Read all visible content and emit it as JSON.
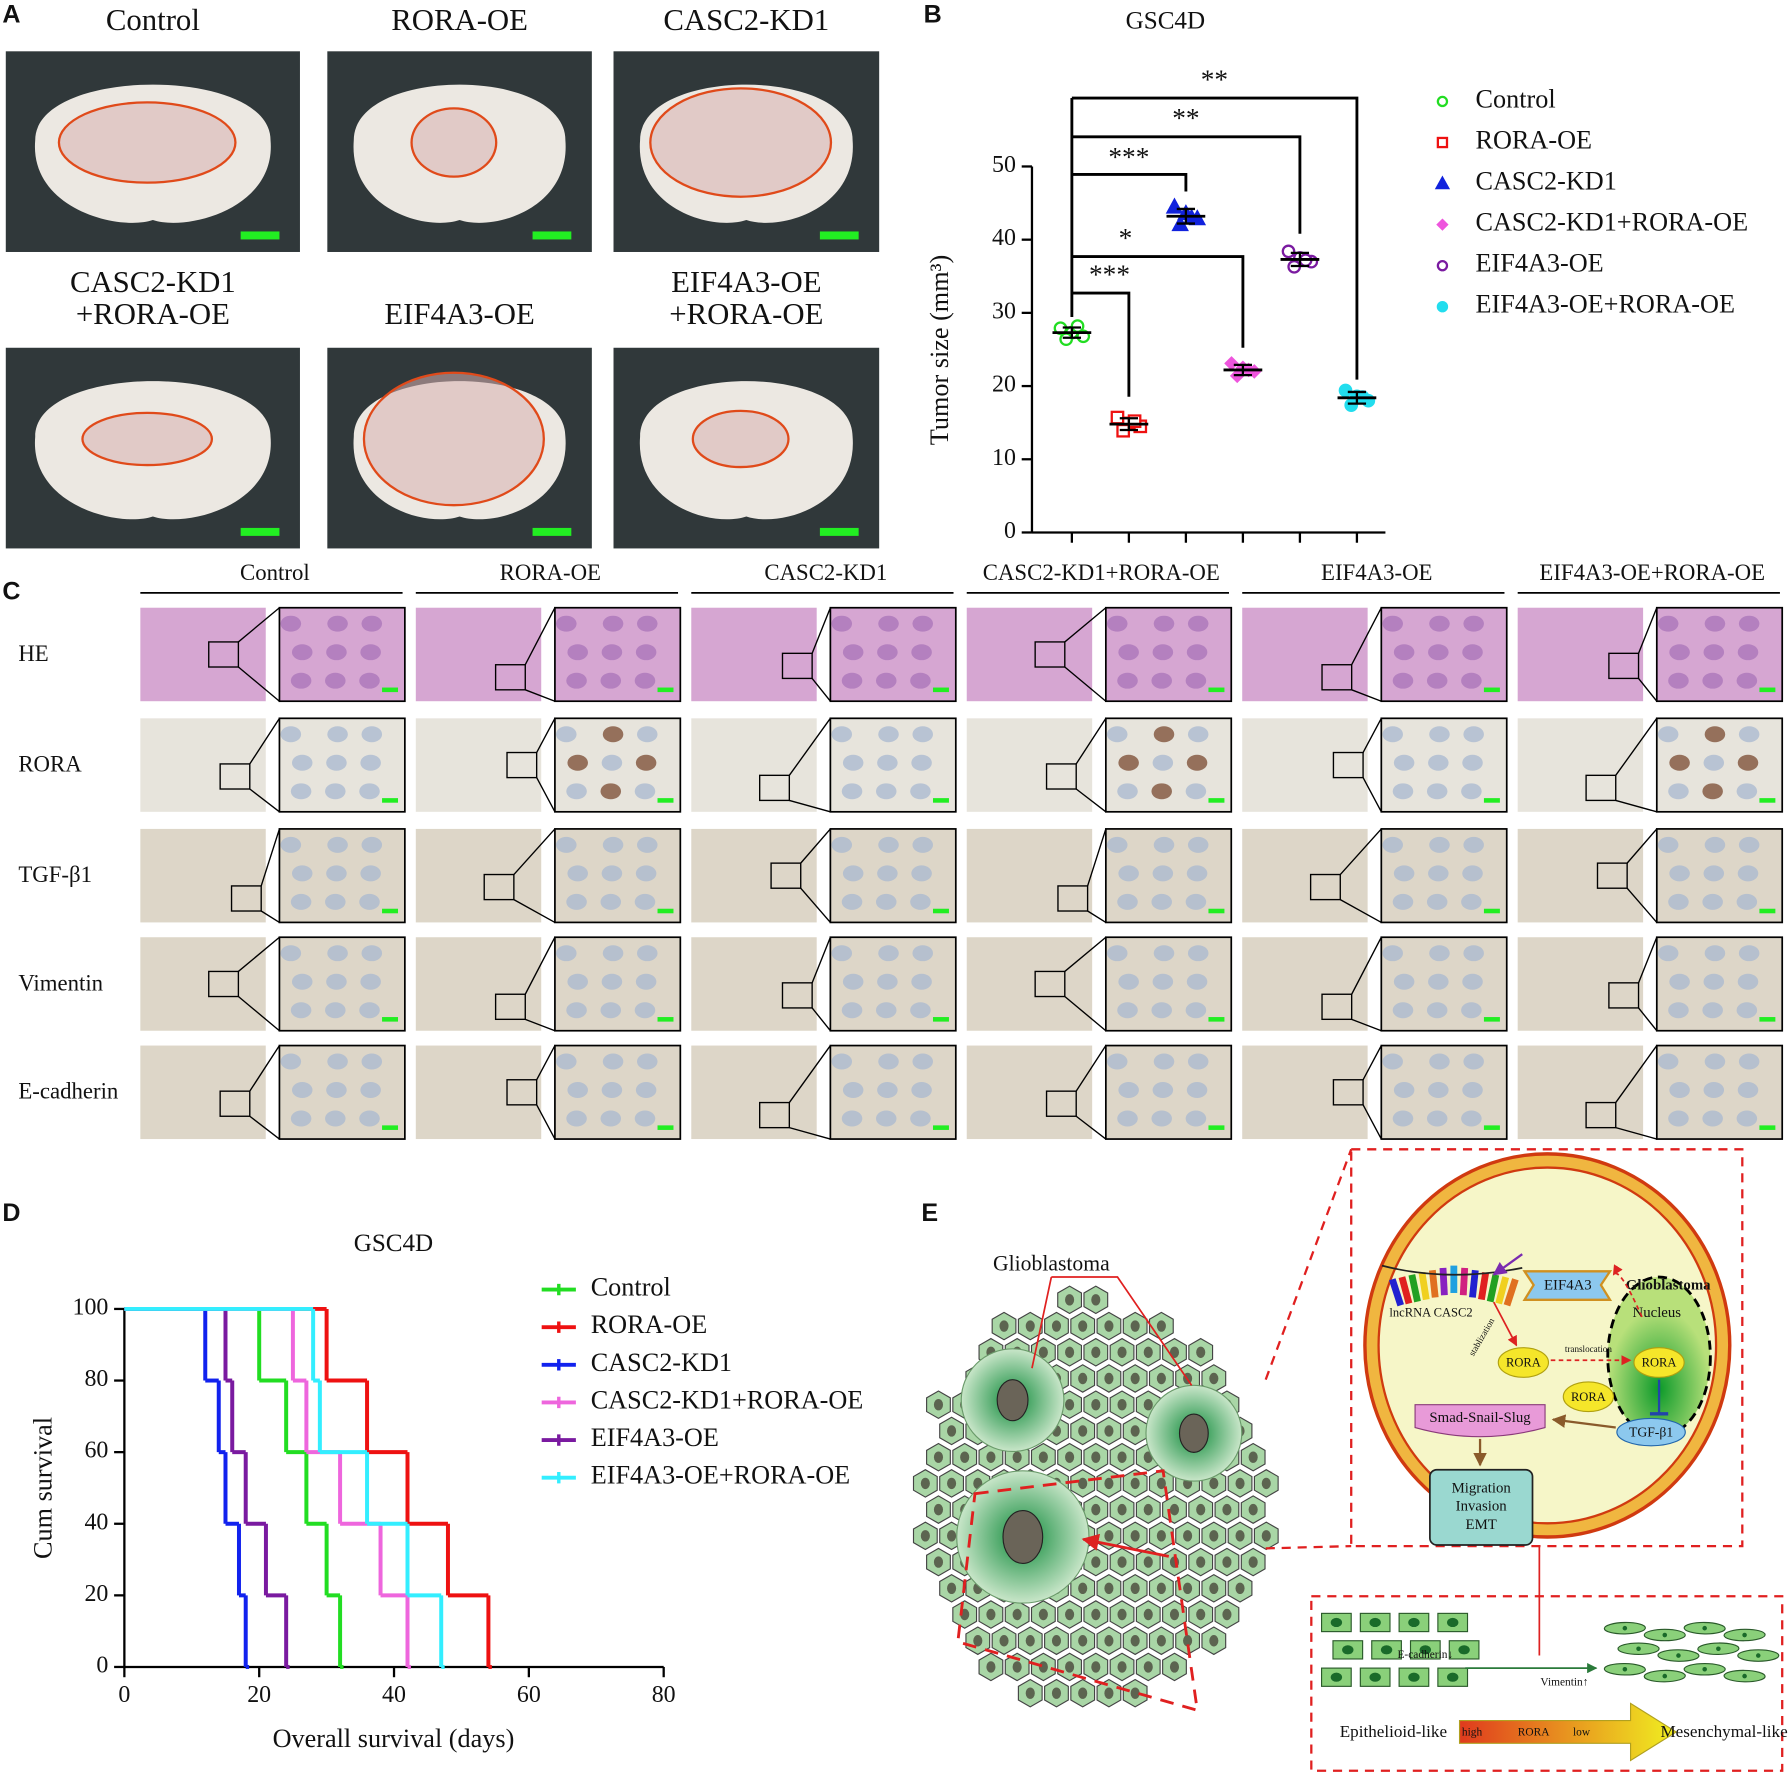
{
  "panel_labels": [
    "A",
    "B",
    "C",
    "D",
    "E"
  ],
  "panel_a": {
    "titles": [
      [
        "Control"
      ],
      [
        "RORA-OE"
      ],
      [
        "CASC2-KD1"
      ],
      [
        "CASC2-KD1",
        "+RORA-OE"
      ],
      [
        "EIF4A3-OE"
      ],
      [
        "EIF4A3-OE",
        "+RORA-OE"
      ]
    ]
  },
  "chart_data": [
    {
      "type": "dot",
      "title": "GSC4D",
      "y_label": "Tumor size (mm³)",
      "ylim": [
        0,
        50
      ],
      "yticks": [
        0,
        10,
        20,
        30,
        40,
        50
      ],
      "series": [
        {
          "name": "Control",
          "color": "#22dd22",
          "marker": "circle-open",
          "values": [
            27.9,
            27.3,
            26.8,
            26.4,
            28.2
          ],
          "mean": 27.3,
          "sd": 0.7
        },
        {
          "name": "RORA-OE",
          "color": "#ee1111",
          "marker": "square-open",
          "values": [
            15.7,
            14.9,
            14.5,
            13.9,
            15.2
          ],
          "mean": 14.8,
          "sd": 0.8
        },
        {
          "name": "CASC2-KD1",
          "color": "#1122dd",
          "marker": "triangle",
          "values": [
            44.5,
            43.6,
            42.9,
            42.1,
            43.0
          ],
          "mean": 43.2,
          "sd": 1.0
        },
        {
          "name": "CASC2-KD1+RORA-OE",
          "color": "#ee55dd",
          "marker": "diamond",
          "values": [
            23.1,
            22.5,
            22.0,
            21.4,
            22.2
          ],
          "mean": 22.2,
          "sd": 0.7
        },
        {
          "name": "EIF4A3-OE",
          "color": "#7a1aa0",
          "marker": "circle-open",
          "values": [
            38.4,
            37.5,
            37.0,
            36.3,
            37.2
          ],
          "mean": 37.3,
          "sd": 0.9
        },
        {
          "name": "EIF4A3-OE+RORA-OE",
          "color": "#22ddee",
          "marker": "circle",
          "values": [
            19.4,
            18.6,
            18.0,
            17.4,
            18.5
          ],
          "mean": 18.4,
          "sd": 0.8
        }
      ],
      "annotations": [
        "**",
        "**",
        "***",
        "*",
        "***"
      ]
    },
    {
      "type": "step",
      "title": "GSC4D",
      "x_label": "Overall survival (days)",
      "y_label": "Cum survival",
      "xlim": [
        0,
        80
      ],
      "xticks": [
        0,
        20,
        40,
        60,
        80
      ],
      "ylim": [
        0,
        100
      ],
      "yticks": [
        0,
        20,
        40,
        60,
        80,
        100
      ],
      "series": [
        {
          "name": "Control",
          "color": "#22dd22",
          "x": [
            0,
            20,
            24,
            27,
            30,
            32
          ],
          "values": [
            100,
            80,
            60,
            40,
            20,
            0
          ]
        },
        {
          "name": "RORA-OE",
          "color": "#ee1111",
          "x": [
            0,
            30,
            36,
            42,
            48,
            54
          ],
          "values": [
            100,
            80,
            60,
            40,
            20,
            0
          ]
        },
        {
          "name": "CASC2-KD1",
          "color": "#1122ee",
          "x": [
            0,
            12,
            14,
            15,
            17,
            18
          ],
          "values": [
            100,
            80,
            60,
            40,
            20,
            0
          ]
        },
        {
          "name": "CASC2-KD1+RORA-OE",
          "color": "#ee66dd",
          "x": [
            0,
            25,
            27,
            32,
            38,
            42
          ],
          "values": [
            100,
            80,
            60,
            40,
            20,
            0
          ]
        },
        {
          "name": "EIF4A3-OE",
          "color": "#7a1aa0",
          "x": [
            0,
            15,
            16,
            18,
            21,
            24
          ],
          "values": [
            100,
            80,
            60,
            40,
            20,
            0
          ]
        },
        {
          "name": "EIF4A3-OE+RORA-OE",
          "color": "#33eeff",
          "x": [
            0,
            28,
            29,
            36,
            42,
            47
          ],
          "values": [
            100,
            80,
            60,
            40,
            20,
            0
          ]
        }
      ]
    }
  ],
  "panel_c": {
    "columns": [
      "Control",
      "RORA-OE",
      "CASC2-KD1",
      "CASC2-KD1+RORA-OE",
      "EIF4A3-OE",
      "EIF4A3-OE+RORA-OE"
    ],
    "rows": [
      "HE",
      "RORA",
      "TGF-β1",
      "Vimentin",
      "E-cadherin"
    ]
  },
  "panel_e": {
    "glioblastoma_left": "Glioblastoma",
    "glioblastoma_right": "Glioblastoma",
    "eif4a3": "EIF4A3",
    "lncrna": "lncRNA CASC2",
    "stabilization": "stablization",
    "rora": [
      "RORA",
      "RORA",
      "RORA"
    ],
    "translocation": "translocation",
    "nucleus": "Nucleus",
    "smad": "Smad-Snail-Slug",
    "tgf": "TGF-β1",
    "outcome": [
      "Migration",
      "Invasion",
      "EMT"
    ],
    "ecadherin": "E-cadherin↓",
    "vimentin": "Vimentin↑",
    "epithelioid": "Epithelioid-like",
    "gradient": [
      "high",
      "RORA",
      "low"
    ],
    "mesenchymal": "Mesenchymal-like"
  }
}
